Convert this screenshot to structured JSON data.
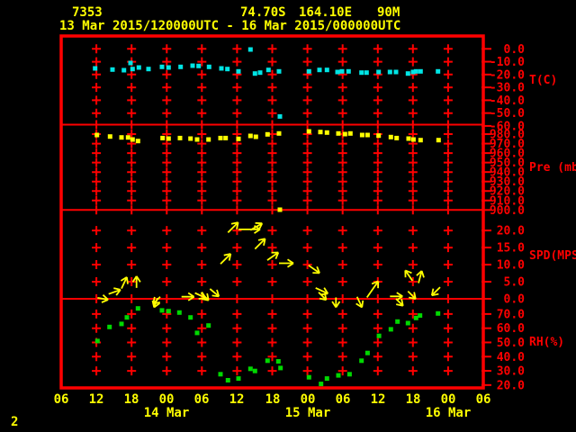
{
  "header": {
    "station_id": "7353",
    "latitude": "74.70S",
    "longitude": "164.10E",
    "elevation": "90M",
    "time_range": "13 Mar 2015/120000UTC - 16 Mar 2015/000000UTC"
  },
  "page_number": "2",
  "colors": {
    "background": "#000000",
    "grid": "#ff0000",
    "text_yellow": "#ffff00",
    "temperature": "#00e5e5",
    "pressure": "#ffff00",
    "wind": "#ffff00",
    "humidity": "#00d800"
  },
  "time_axis": {
    "tick_labels": [
      "06",
      "12",
      "18",
      "00",
      "06",
      "12",
      "18",
      "00",
      "06",
      "12",
      "18",
      "00",
      "06"
    ],
    "hours_per_tick": 6,
    "date_labels": [
      {
        "label": "14 Mar",
        "tick_index": 3
      },
      {
        "label": "15 Mar",
        "tick_index": 7
      },
      {
        "label": "16 Mar",
        "tick_index": 11
      }
    ]
  },
  "chart_data": [
    {
      "id": "temp",
      "type": "scatter",
      "ylabel": "T(C)",
      "marker_color": "#00e5e5",
      "ylim": [
        10,
        -59
      ],
      "yticks": [
        0,
        -10,
        -20,
        -30,
        -40,
        -50,
        -60
      ],
      "plus_rows": [
        0,
        -10,
        -20,
        -30,
        -40,
        -50
      ],
      "points": [
        [
          5.79,
          -15.2
        ],
        [
          8.75,
          -16.1
        ],
        [
          10.7,
          -16.6
        ],
        [
          11.82,
          -11.0
        ],
        [
          12.17,
          -15.7
        ],
        [
          13.25,
          -14.5
        ],
        [
          14.89,
          -15.7
        ],
        [
          17.19,
          -14.0
        ],
        [
          18.31,
          -14.5
        ],
        [
          20.37,
          -14.0
        ],
        [
          22.41,
          -13.1
        ],
        [
          23.44,
          -13.3
        ],
        [
          25.22,
          -14.0
        ],
        [
          27.32,
          -15.2
        ],
        [
          28.35,
          -15.7
        ],
        [
          30.24,
          -17.5
        ],
        [
          32.28,
          -0.5
        ],
        [
          33.05,
          -19.2
        ],
        [
          33.93,
          -18.5
        ],
        [
          35.36,
          -16.4
        ],
        [
          37.15,
          -17.5
        ],
        [
          37.31,
          -52.6
        ],
        [
          42.27,
          -17.5
        ],
        [
          44.06,
          -16.4
        ],
        [
          45.34,
          -16.4
        ],
        [
          47.13,
          -18.0
        ],
        [
          47.9,
          -17.5
        ],
        [
          49.02,
          -17.5
        ],
        [
          51.23,
          -18.5
        ],
        [
          52.09,
          -18.5
        ],
        [
          54.15,
          -18.0
        ],
        [
          56.08,
          -18.0
        ],
        [
          57.11,
          -18.0
        ],
        [
          59.15,
          -19.2
        ],
        [
          60.03,
          -18.0
        ],
        [
          60.53,
          -17.5
        ],
        [
          61.3,
          -17.5
        ],
        [
          64.28,
          -17.5
        ]
      ]
    },
    {
      "id": "pres",
      "type": "scatter",
      "ylabel": "Pre (mb)",
      "marker_color": "#ffff00",
      "ylim": [
        990,
        900
      ],
      "yticks": [
        980,
        970,
        960,
        950,
        940,
        930,
        920,
        910,
        900
      ],
      "plus_rows": [
        980,
        970,
        960,
        950,
        940,
        930,
        920,
        910
      ],
      "points": [
        [
          6.09,
          979.1
        ],
        [
          8.34,
          977.5
        ],
        [
          10.29,
          976.5
        ],
        [
          11.41,
          976.5
        ],
        [
          12.17,
          974.3
        ],
        [
          13.1,
          972.7
        ],
        [
          17.3,
          975.9
        ],
        [
          18.31,
          975.3
        ],
        [
          20.26,
          975.9
        ],
        [
          22.06,
          975.3
        ],
        [
          23.18,
          974.3
        ],
        [
          25.13,
          974.3
        ],
        [
          27.17,
          975.9
        ],
        [
          28.05,
          975.9
        ],
        [
          30.24,
          975.0
        ],
        [
          32.28,
          978.1
        ],
        [
          33.2,
          977.2
        ],
        [
          35.2,
          979.7
        ],
        [
          37.15,
          980.7
        ],
        [
          37.31,
          900.3
        ],
        [
          42.27,
          982.9
        ],
        [
          44.22,
          982.2
        ],
        [
          45.34,
          981.6
        ],
        [
          47.29,
          980.7
        ],
        [
          48.41,
          980.0
        ],
        [
          49.33,
          980.7
        ],
        [
          51.33,
          979.1
        ],
        [
          52.25,
          979.1
        ],
        [
          54.15,
          978.4
        ],
        [
          56.24,
          976.9
        ],
        [
          57.22,
          975.9
        ],
        [
          59.26,
          975.3
        ],
        [
          60.08,
          974.3
        ],
        [
          61.3,
          973.7
        ],
        [
          64.37,
          973.7
        ]
      ]
    },
    {
      "id": "spd",
      "type": "vector",
      "ylabel": "SPD(MPS)",
      "marker_color": "#ffff00",
      "ylim": [
        26,
        0
      ],
      "yticks": [
        20,
        15,
        10,
        5,
        0
      ],
      "plus_rows": [
        20,
        15,
        10,
        5
      ],
      "vectors": [
        [
          6.19,
          0.3,
          100,
          12
        ],
        [
          8.09,
          1.4,
          70,
          14
        ],
        [
          10.29,
          3.0,
          25,
          14
        ],
        [
          12.85,
          3.2,
          0,
          13
        ],
        [
          16.43,
          0.2,
          200,
          11
        ],
        [
          16.89,
          0.6,
          225,
          11
        ],
        [
          20.52,
          0.6,
          90,
          14
        ],
        [
          22.82,
          1.7,
          115,
          13
        ],
        [
          23.84,
          1.8,
          135,
          12
        ],
        [
          25.38,
          2.9,
          130,
          13
        ],
        [
          27.17,
          10.2,
          45,
          16
        ],
        [
          28.45,
          19.4,
          45,
          16
        ],
        [
          30.24,
          20.3,
          90,
          24
        ],
        [
          32.28,
          20.1,
          60,
          15
        ],
        [
          33.05,
          14.6,
          45,
          16
        ],
        [
          35.15,
          11.3,
          55,
          15
        ],
        [
          37.15,
          10.4,
          90,
          16
        ],
        [
          42.18,
          9.8,
          125,
          15
        ],
        [
          43.4,
          3.2,
          115,
          15
        ],
        [
          43.91,
          1.9,
          135,
          12
        ],
        [
          46.87,
          0.4,
          180,
          11
        ],
        [
          50.46,
          0.6,
          155,
          13
        ],
        [
          52.15,
          0.4,
          35,
          22
        ],
        [
          56.08,
          0.7,
          90,
          14
        ],
        [
          57.11,
          0.0,
          135,
          11
        ],
        [
          59.15,
          2.2,
          135,
          12
        ],
        [
          59.92,
          5.3,
          325,
          14
        ],
        [
          60.95,
          4.6,
          15,
          14
        ],
        [
          64.63,
          3.4,
          225,
          13
        ]
      ]
    },
    {
      "id": "rh",
      "type": "scatter",
      "ylabel": "RH(%)",
      "marker_color": "#00d800",
      "ylim": [
        80.7,
        18
      ],
      "yticks": [
        70,
        60,
        50,
        40,
        30,
        20
      ],
      "plus_rows": [
        70,
        60,
        50,
        40,
        30
      ],
      "points": [
        [
          6.19,
          51.0
        ],
        [
          8.24,
          60.9
        ],
        [
          10.29,
          63.0
        ],
        [
          11.21,
          67.6
        ],
        [
          13.1,
          73.9
        ],
        [
          17.19,
          72.5
        ],
        [
          18.31,
          72.0
        ],
        [
          20.16,
          71.0
        ],
        [
          22.06,
          67.6
        ],
        [
          23.18,
          56.7
        ],
        [
          25.13,
          61.9
        ],
        [
          27.17,
          27.6
        ],
        [
          28.45,
          23.4
        ],
        [
          30.24,
          24.6
        ],
        [
          32.28,
          31.4
        ],
        [
          33.05,
          29.9
        ],
        [
          35.2,
          37.1
        ],
        [
          37.04,
          36.7
        ],
        [
          37.41,
          32.0
        ],
        [
          42.27,
          25.5
        ],
        [
          44.32,
          20.8
        ],
        [
          45.34,
          24.6
        ],
        [
          47.29,
          26.8
        ],
        [
          49.18,
          27.6
        ],
        [
          51.23,
          37.1
        ],
        [
          52.25,
          42.6
        ],
        [
          54.2,
          54.6
        ],
        [
          56.24,
          59.2
        ],
        [
          57.37,
          64.7
        ],
        [
          59.15,
          63.6
        ],
        [
          60.53,
          67.2
        ],
        [
          61.21,
          68.9
        ],
        [
          64.28,
          70.4
        ]
      ]
    }
  ]
}
